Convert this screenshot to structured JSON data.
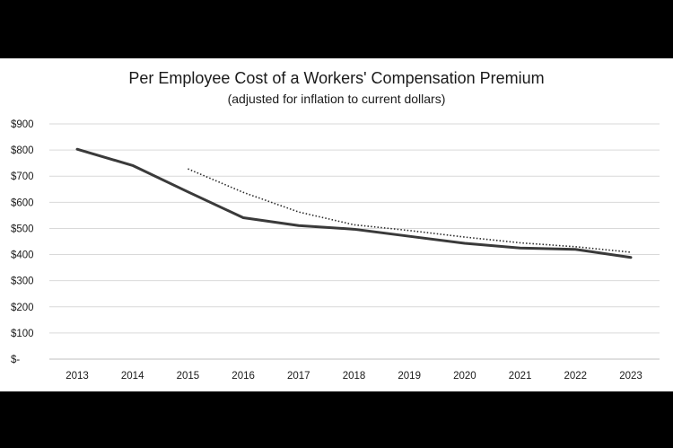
{
  "chart_data": {
    "type": "line",
    "title": "Per Employee Cost of a Workers' Compensation Premium",
    "subtitle": "(adjusted for inflation to current dollars)",
    "xlabel": "",
    "ylabel": "",
    "categories": [
      "2013",
      "2014",
      "2015",
      "2016",
      "2017",
      "2018",
      "2019",
      "2020",
      "2021",
      "2022",
      "2023"
    ],
    "ylim": [
      0,
      900
    ],
    "yticks": [
      0,
      100,
      200,
      300,
      400,
      500,
      600,
      700,
      800,
      900
    ],
    "ytick_labels": [
      "$-",
      "$100",
      "$200",
      "$300",
      "$400",
      "$500",
      "$600",
      "$700",
      "$800",
      "$900"
    ],
    "grid": true,
    "legend": "none",
    "series": [
      {
        "style": "solid",
        "color": "#3a3a3a",
        "values": [
          803,
          741,
          640,
          541,
          511,
          497,
          470,
          443,
          425,
          420,
          389
        ]
      },
      {
        "style": "dotted",
        "color": "#2a2a2a",
        "values": [
          null,
          null,
          728,
          638,
          563,
          514,
          492,
          467,
          445,
          430,
          409
        ]
      }
    ]
  }
}
